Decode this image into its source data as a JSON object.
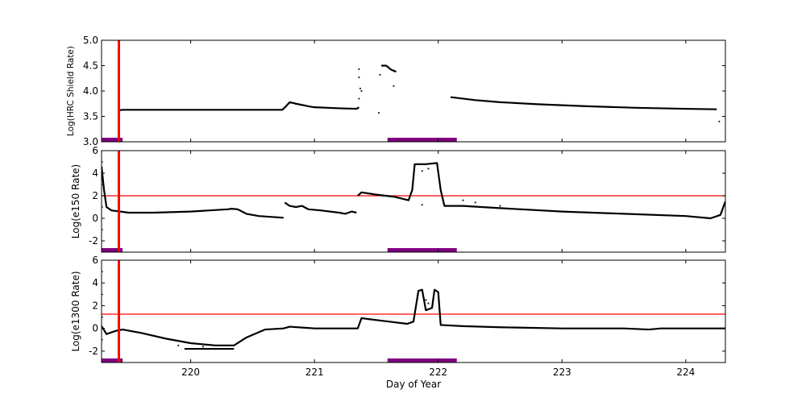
{
  "chart_data": [
    {
      "type": "line",
      "ylabel": "Log(HRC Shield Rate)",
      "xlim": [
        219.28,
        224.32
      ],
      "ylim": [
        3.0,
        5.0
      ],
      "yticks": [
        3.0,
        3.5,
        4.0,
        4.5,
        5.0
      ],
      "ytick_labels": [
        "3.0",
        "3.5",
        "4.0",
        "4.5",
        "5.0"
      ],
      "xticks": [
        220,
        221,
        222,
        223,
        224
      ],
      "grid": false,
      "series": [
        {
          "points": [
            [
              219.42,
              3.62
            ],
            [
              219.45,
              3.63
            ],
            [
              220.0,
              3.63
            ],
            [
              220.5,
              3.63
            ],
            [
              220.74,
              3.63
            ],
            [
              220.77,
              3.7
            ],
            [
              220.8,
              3.78
            ],
            [
              220.85,
              3.75
            ],
            [
              220.95,
              3.7
            ],
            [
              221.0,
              3.68
            ],
            [
              221.2,
              3.66
            ],
            [
              221.34,
              3.65
            ],
            [
              221.36,
              3.68
            ]
          ]
        },
        {
          "points": [
            [
              221.54,
              4.5
            ],
            [
              221.58,
              4.5
            ],
            [
              221.62,
              4.42
            ],
            [
              221.66,
              4.38
            ]
          ]
        },
        {
          "points": [
            [
              222.1,
              3.88
            ],
            [
              222.3,
              3.82
            ],
            [
              222.5,
              3.78
            ],
            [
              222.8,
              3.74
            ],
            [
              223.2,
              3.7
            ],
            [
              223.6,
              3.67
            ],
            [
              224.0,
              3.65
            ],
            [
              224.25,
              3.64
            ]
          ]
        }
      ],
      "scatter": [
        [
          221.36,
          4.43
        ],
        [
          221.36,
          4.27
        ],
        [
          221.37,
          4.05
        ],
        [
          221.38,
          4.0
        ],
        [
          221.36,
          3.85
        ],
        [
          221.52,
          3.57
        ],
        [
          221.53,
          4.32
        ],
        [
          221.64,
          4.1
        ],
        [
          224.27,
          3.4
        ]
      ],
      "threshold": null,
      "vline": 219.42,
      "bands": [
        [
          219.28,
          219.45
        ],
        [
          221.59,
          222.15
        ]
      ]
    },
    {
      "type": "line",
      "ylabel": "Log(e150  Rate)",
      "xlim": [
        219.28,
        224.32
      ],
      "ylim": [
        -3,
        6
      ],
      "yticks": [
        -2,
        0,
        2,
        4,
        6
      ],
      "ytick_labels": [
        "-2",
        "0",
        "2",
        "4",
        "6"
      ],
      "xticks": [
        220,
        221,
        222,
        223,
        224
      ],
      "grid": false,
      "series": [
        {
          "points": [
            [
              219.28,
              4.6
            ],
            [
              219.3,
              2.5
            ],
            [
              219.32,
              1.0
            ],
            [
              219.36,
              0.7
            ],
            [
              219.5,
              0.5
            ],
            [
              219.7,
              0.5
            ],
            [
              220.0,
              0.6
            ],
            [
              220.3,
              0.8
            ],
            [
              220.33,
              0.85
            ],
            [
              220.38,
              0.8
            ],
            [
              220.45,
              0.4
            ],
            [
              220.55,
              0.2
            ],
            [
              220.75,
              0.05
            ]
          ]
        },
        {
          "points": [
            [
              220.76,
              1.4
            ],
            [
              220.8,
              1.1
            ],
            [
              220.85,
              1.0
            ],
            [
              220.9,
              1.1
            ],
            [
              220.95,
              0.8
            ],
            [
              221.05,
              0.7
            ],
            [
              221.2,
              0.5
            ],
            [
              221.25,
              0.4
            ],
            [
              221.3,
              0.6
            ],
            [
              221.34,
              0.5
            ]
          ]
        },
        {
          "points": [
            [
              221.35,
              2.0
            ],
            [
              221.38,
              2.3
            ],
            [
              221.5,
              2.1
            ],
            [
              221.65,
              1.9
            ],
            [
              221.76,
              1.6
            ],
            [
              221.79,
              2.5
            ],
            [
              221.81,
              4.8
            ],
            [
              221.9,
              4.8
            ],
            [
              221.99,
              4.9
            ],
            [
              222.02,
              2.5
            ],
            [
              222.05,
              1.1
            ],
            [
              222.2,
              1.1
            ],
            [
              222.5,
              0.9
            ],
            [
              223.0,
              0.6
            ],
            [
              223.5,
              0.4
            ],
            [
              224.0,
              0.2
            ],
            [
              224.2,
              0.0
            ],
            [
              224.28,
              0.3
            ],
            [
              224.32,
              1.5
            ]
          ]
        }
      ],
      "scatter": [
        [
          221.87,
          1.2
        ],
        [
          221.87,
          4.2
        ],
        [
          221.92,
          4.4
        ],
        [
          222.2,
          1.6
        ],
        [
          222.3,
          1.4
        ],
        [
          222.5,
          1.1
        ]
      ],
      "threshold": 2.0,
      "vline": 219.42,
      "bands": [
        [
          219.28,
          219.45
        ],
        [
          221.59,
          222.15
        ]
      ]
    },
    {
      "type": "line",
      "ylabel": "Log(e1300 Rate)",
      "xlabel": "Day of Year",
      "xlim": [
        219.28,
        224.32
      ],
      "ylim": [
        -3,
        6
      ],
      "yticks": [
        -2,
        0,
        2,
        4,
        6
      ],
      "ytick_labels": [
        "-2",
        "0",
        "2",
        "4",
        "6"
      ],
      "xticks": [
        220,
        221,
        222,
        223,
        224
      ],
      "xtick_labels": [
        "220",
        "221",
        "222",
        "223",
        "224"
      ],
      "grid": false,
      "series": [
        {
          "points": [
            [
              219.28,
              0.2
            ],
            [
              219.32,
              -0.5
            ],
            [
              219.4,
              -0.2
            ],
            [
              219.45,
              -0.1
            ],
            [
              219.6,
              -0.4
            ],
            [
              219.8,
              -0.9
            ],
            [
              220.0,
              -1.3
            ],
            [
              220.2,
              -1.5
            ],
            [
              220.35,
              -1.5
            ],
            [
              220.45,
              -0.8
            ],
            [
              220.6,
              -0.1
            ],
            [
              220.75,
              0.0
            ],
            [
              220.8,
              0.15
            ],
            [
              221.0,
              0.0
            ],
            [
              221.35,
              0.0
            ],
            [
              221.38,
              0.9
            ],
            [
              221.45,
              0.8
            ],
            [
              221.6,
              0.6
            ],
            [
              221.75,
              0.4
            ],
            [
              221.8,
              0.6
            ],
            [
              221.84,
              3.3
            ],
            [
              221.87,
              3.4
            ],
            [
              221.9,
              1.6
            ],
            [
              221.95,
              1.8
            ],
            [
              221.97,
              3.4
            ],
            [
              222.0,
              3.2
            ],
            [
              222.02,
              0.3
            ],
            [
              222.2,
              0.2
            ],
            [
              222.5,
              0.1
            ],
            [
              223.0,
              0.0
            ],
            [
              223.5,
              0.0
            ],
            [
              223.7,
              -0.1
            ],
            [
              223.8,
              0.0
            ],
            [
              224.32,
              0.0
            ]
          ]
        },
        {
          "points": [
            [
              219.95,
              -1.8
            ],
            [
              220.35,
              -1.8
            ]
          ]
        }
      ],
      "scatter": [
        [
          219.9,
          -1.5
        ],
        [
          220.1,
          -1.6
        ],
        [
          221.9,
          2.5
        ],
        [
          221.92,
          2.2
        ]
      ],
      "threshold": 1.25,
      "vline": 219.42,
      "bands": [
        [
          219.28,
          219.45
        ],
        [
          221.59,
          222.15
        ]
      ]
    }
  ],
  "colors": {
    "data": "#000000",
    "threshold": "#ff0000",
    "vline": "#ff0000",
    "band": "#800080"
  }
}
